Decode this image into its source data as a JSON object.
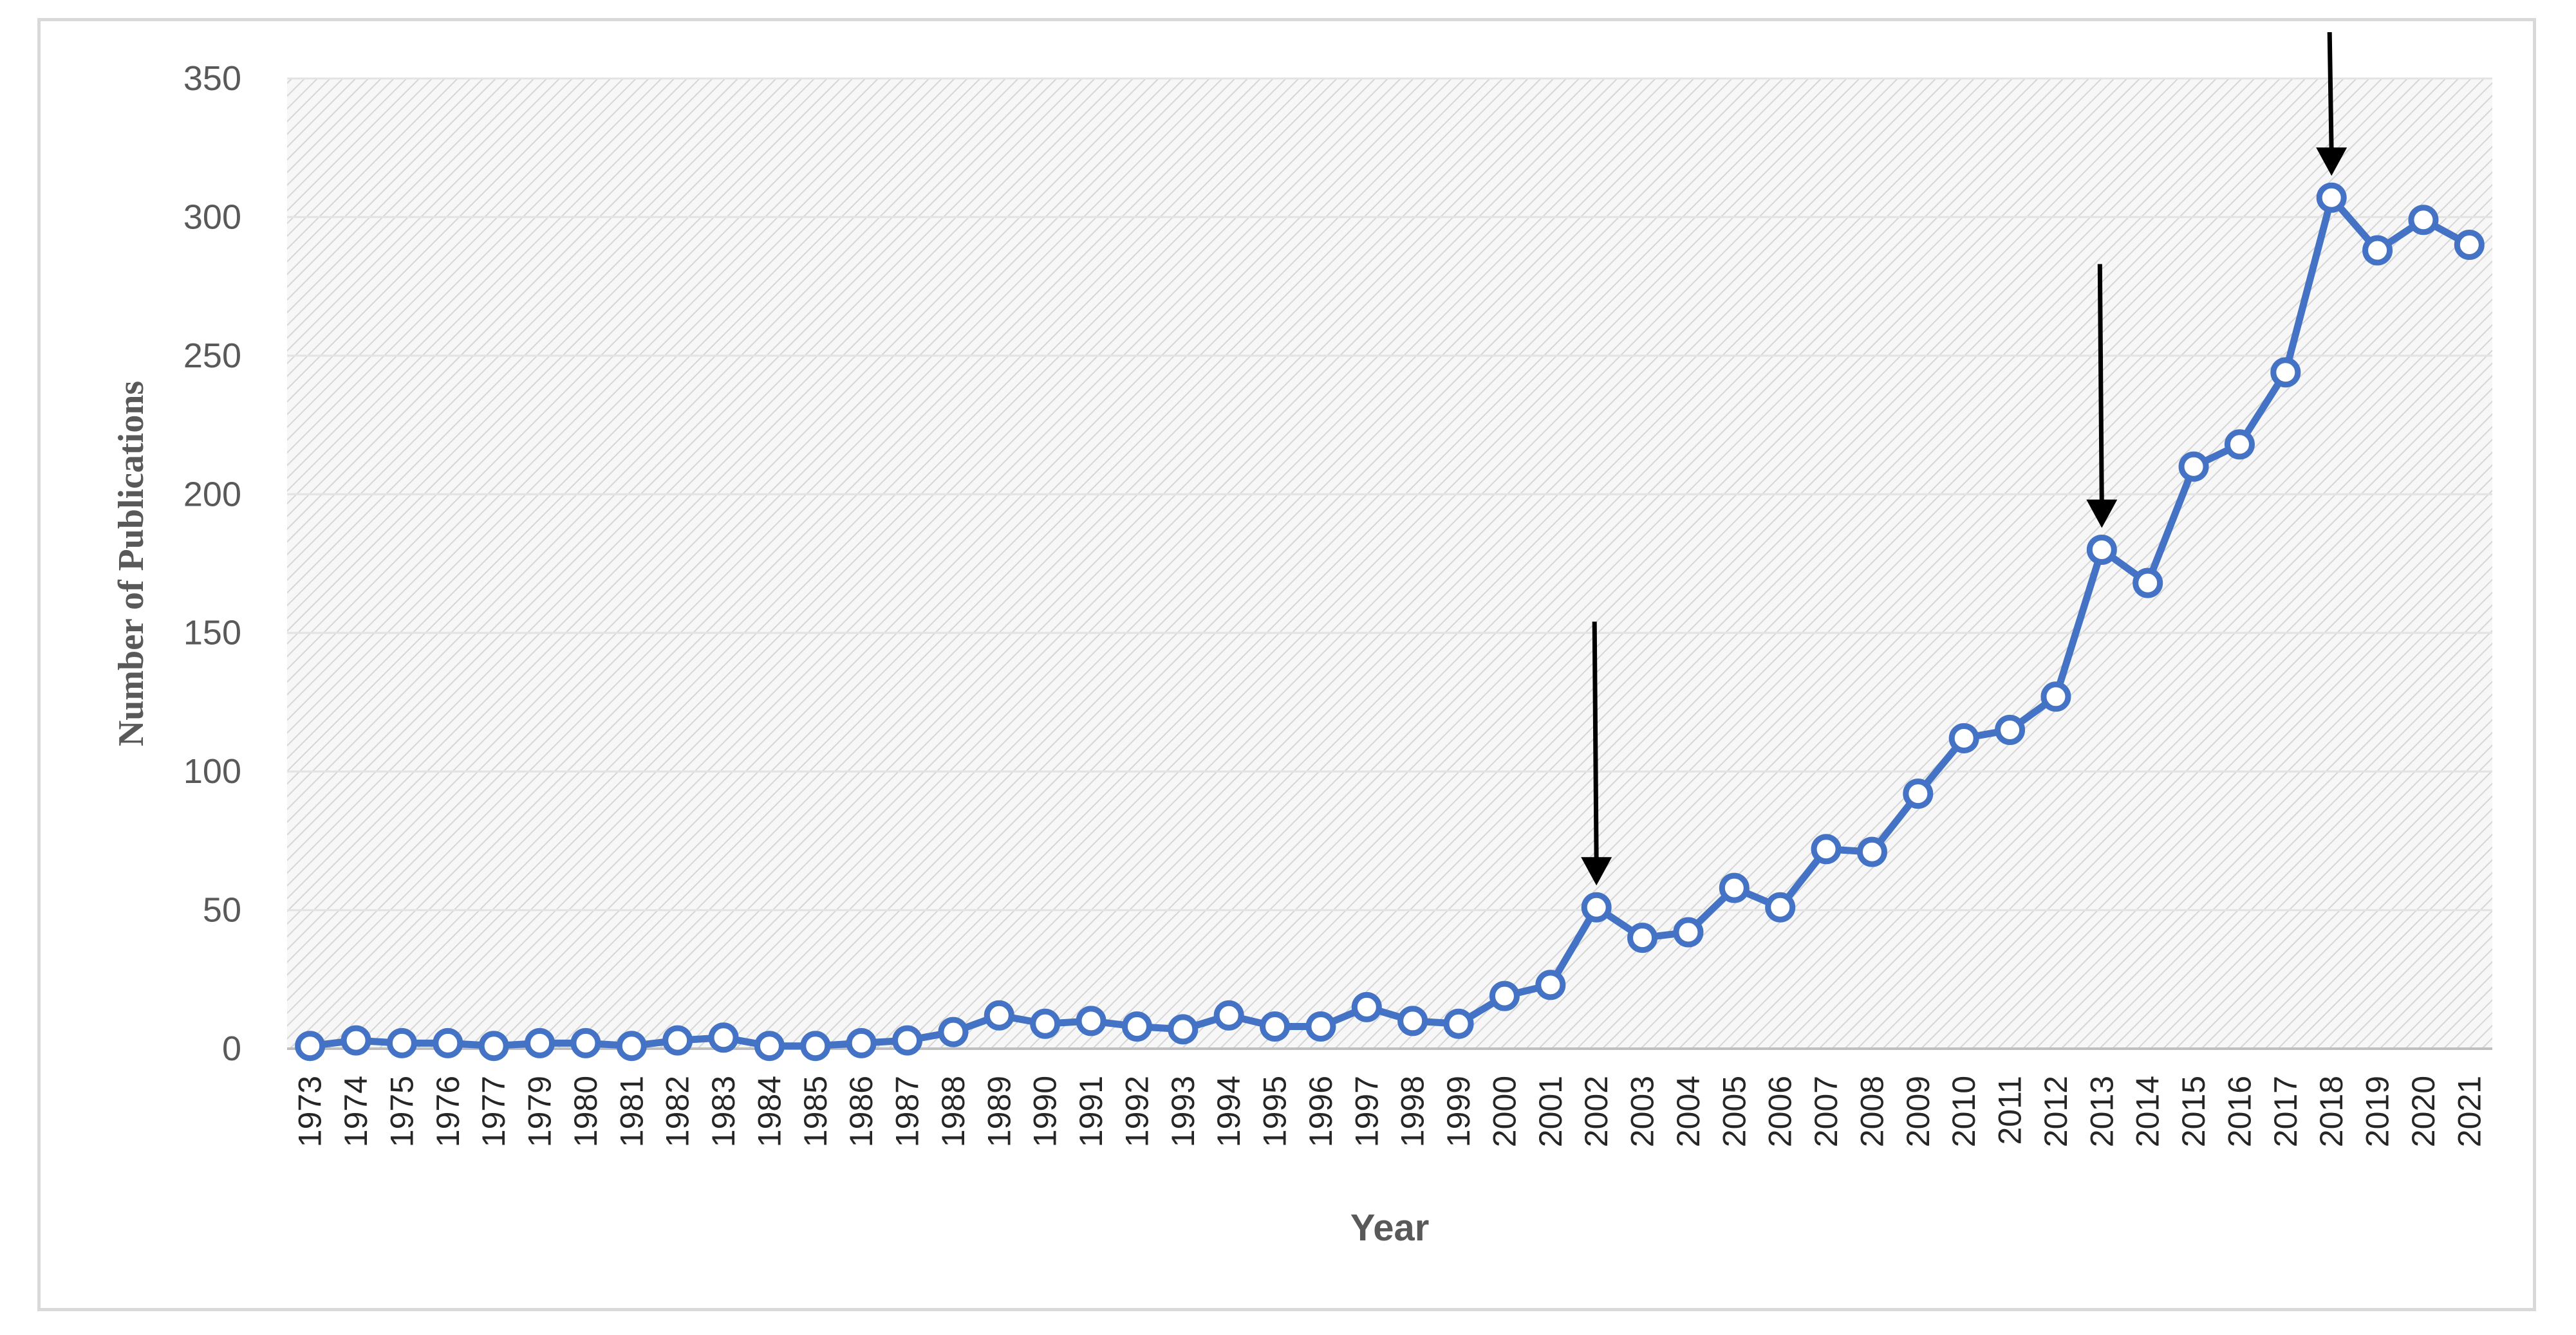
{
  "chart_data": {
    "type": "line",
    "title": "",
    "xlabel": "Year",
    "ylabel": "Number of Publications",
    "ylim": [
      0,
      350
    ],
    "yticks": [
      0,
      50,
      100,
      150,
      200,
      250,
      300,
      350
    ],
    "grid": true,
    "legend": "none",
    "categories": [
      "1973",
      "1974",
      "1975",
      "1976",
      "1977",
      "1979",
      "1980",
      "1981",
      "1982",
      "1983",
      "1984",
      "1985",
      "1986",
      "1987",
      "1988",
      "1989",
      "1990",
      "1991",
      "1992",
      "1993",
      "1994",
      "1995",
      "1996",
      "1997",
      "1998",
      "1999",
      "2000",
      "2001",
      "2002",
      "2003",
      "2004",
      "2005",
      "2006",
      "2007",
      "2008",
      "2009",
      "2010",
      "2011",
      "2012",
      "2013",
      "2014",
      "2015",
      "2016",
      "2017",
      "2018",
      "2019",
      "2020",
      "2021"
    ],
    "series": [
      {
        "name": "",
        "color": "#4472c4",
        "values": [
          1,
          3,
          2,
          2,
          1,
          2,
          2,
          1,
          3,
          4,
          1,
          1,
          2,
          3,
          6,
          12,
          9,
          10,
          8,
          7,
          12,
          8,
          8,
          15,
          10,
          9,
          19,
          23,
          51,
          40,
          42,
          58,
          51,
          72,
          71,
          92,
          112,
          115,
          127,
          180,
          168,
          210,
          218,
          244,
          307,
          288,
          299,
          290
        ]
      }
    ],
    "annotations": [
      {
        "type": "arrow",
        "target": "2002",
        "color": "#000000"
      },
      {
        "type": "arrow",
        "target": "2013",
        "color": "#000000"
      },
      {
        "type": "arrow",
        "target": "2018",
        "color": "#000000"
      }
    ]
  }
}
